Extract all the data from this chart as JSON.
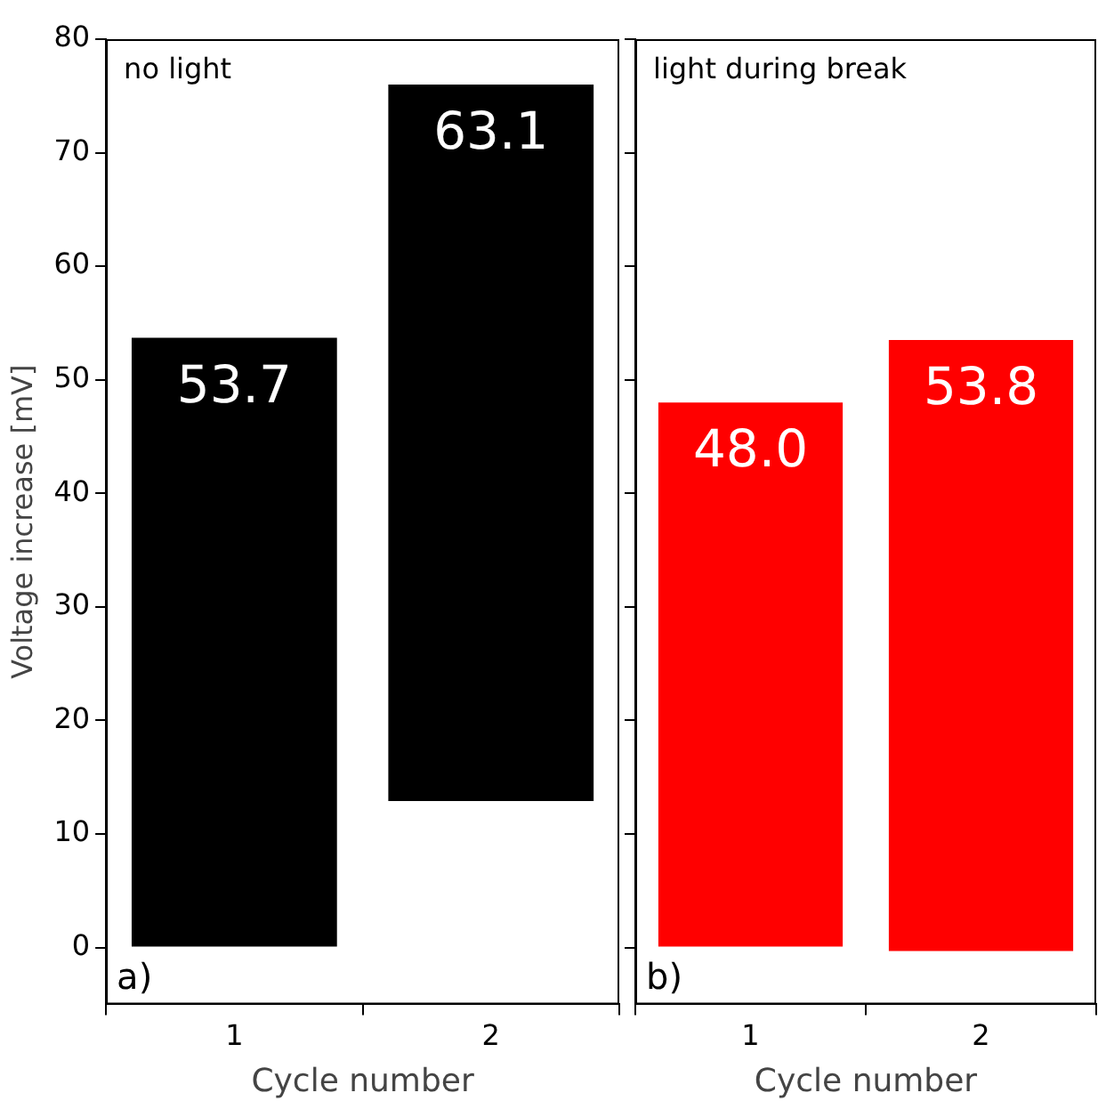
{
  "chart_data": [
    {
      "type": "bar",
      "categories": [
        "1",
        "2"
      ],
      "base": [
        0,
        12.9
      ],
      "values": [
        53.7,
        63.1
      ],
      "value_labels": [
        "53.7",
        "63.1"
      ],
      "color": "#000000",
      "xlabel": "Cycle number",
      "ylabel": "Voltage increase [mV]",
      "ylim": [
        -5,
        80
      ],
      "yticks": [
        0,
        10,
        20,
        30,
        40,
        50,
        60,
        70,
        80
      ],
      "grid": false,
      "annotations": [
        "no light",
        "a)"
      ]
    },
    {
      "type": "bar",
      "categories": [
        "1",
        "2"
      ],
      "base": [
        0,
        -0.3
      ],
      "values": [
        48.0,
        53.8
      ],
      "value_labels": [
        "48.0",
        "53.8"
      ],
      "color": "#ff0000",
      "xlabel": "Cycle number",
      "ylim": [
        -5,
        80
      ],
      "yticks": [
        0,
        10,
        20,
        30,
        40,
        50,
        60,
        70,
        80
      ],
      "grid": false,
      "tick_labels": "x",
      "annotations": [
        "light during break",
        "b)"
      ]
    }
  ]
}
